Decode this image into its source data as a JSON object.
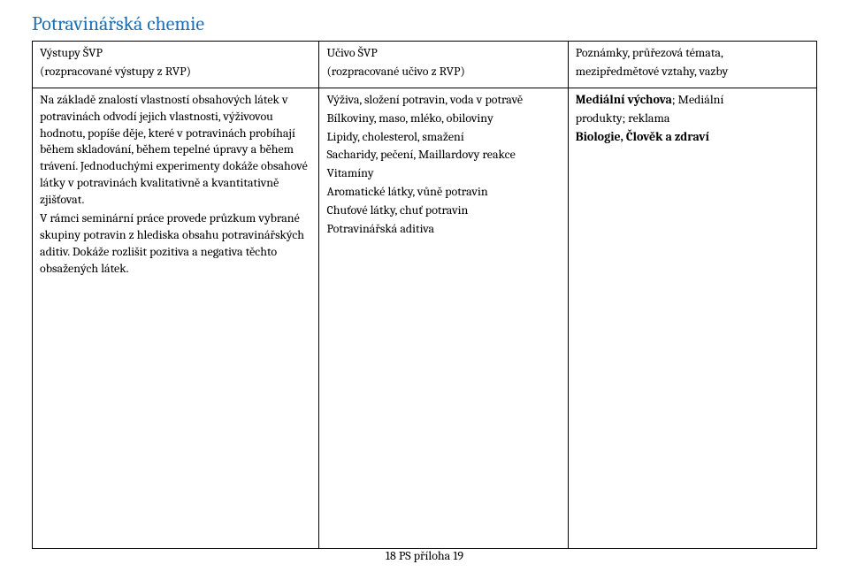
{
  "title": "Potravinářská chemie",
  "title_color": "#1f6fb2",
  "columns": [
    {
      "h1": "Výstupy ŠVP",
      "h2": "(rozpracované výstupy z RVP)"
    },
    {
      "h1": "Učivo ŠVP",
      "h2": "(rozpracované učivo z RVP)"
    },
    {
      "h1": "Poznámky, průřezová témata,",
      "h2": "mezipředmětové vztahy, vazby"
    }
  ],
  "col1_body": "Na základě znalostí vlastností obsahových látek v potravinách odvodí jejich vlastnosti, výživovou hodnotu, popíše děje, které v potravinách probíhají během skladování, během tepelné úpravy a během trávení. Jednoduchými experimenty dokáže obsahové látky v potravinách kvalitativně a kvantitativně zjišťovat.",
  "col1_body2": "V rámci seminární práce provede průzkum vybrané skupiny potravin z hlediska obsahu potravinářských aditiv. Dokáže rozlišit pozitiva a negativa těchto obsažených látek.",
  "col2_lines": [
    "Výživa, složení potravin, voda v potravě",
    "Bílkoviny, maso, mléko, obiloviny",
    "Lipidy, cholesterol, smažení",
    "Sacharidy, pečení, Maillardovy reakce",
    "Vitamíny",
    "Aromatické látky, vůně potravin",
    "Chuťové látky, chuť potravin",
    "Potravinářská aditiva"
  ],
  "col3_line1_a": "Mediální výchova",
  "col3_line1_b": "; Mediální",
  "col3_line2": "produkty; reklama",
  "col3_line3": "Biologie, Člověk a zdraví",
  "footer": "18 PS příloha 19"
}
